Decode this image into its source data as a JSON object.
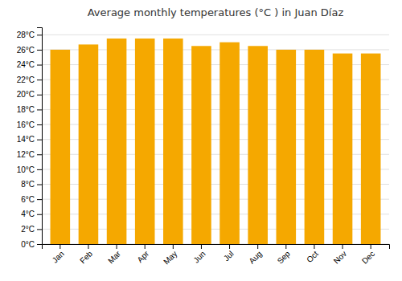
{
  "chart_data": {
    "type": "bar",
    "title": "Average monthly temperatures (°C ) in Juan Díaz",
    "categories": [
      "Jan",
      "Feb",
      "Mar",
      "Apr",
      "May",
      "Jun",
      "Jul",
      "Aug",
      "Sep",
      "Oct",
      "Nov",
      "Dec"
    ],
    "values": [
      26.0,
      26.7,
      27.5,
      27.5,
      27.5,
      26.5,
      27.0,
      26.5,
      26.0,
      26.0,
      25.5,
      25.5
    ],
    "color": "#F5A800",
    "ylim": [
      0,
      29
    ],
    "yticks": [
      {
        "value": 0,
        "label": "0°C"
      },
      {
        "value": 2,
        "label": "2°C"
      },
      {
        "value": 4,
        "label": "4°C"
      },
      {
        "value": 6,
        "label": "6°C"
      },
      {
        "value": 8,
        "label": "8°C"
      },
      {
        "value": 10,
        "label": "10°C"
      },
      {
        "value": 12,
        "label": "12°C"
      },
      {
        "value": 14,
        "label": "14°C"
      },
      {
        "value": 16,
        "label": "16°C"
      },
      {
        "value": 18,
        "label": "18°C"
      },
      {
        "value": 20,
        "label": "20°C"
      },
      {
        "value": 22,
        "label": "22°C"
      },
      {
        "value": 24,
        "label": "24°C"
      },
      {
        "value": 26,
        "label": "26°C"
      },
      {
        "value": 28,
        "label": "28°C"
      }
    ],
    "grid": true
  }
}
